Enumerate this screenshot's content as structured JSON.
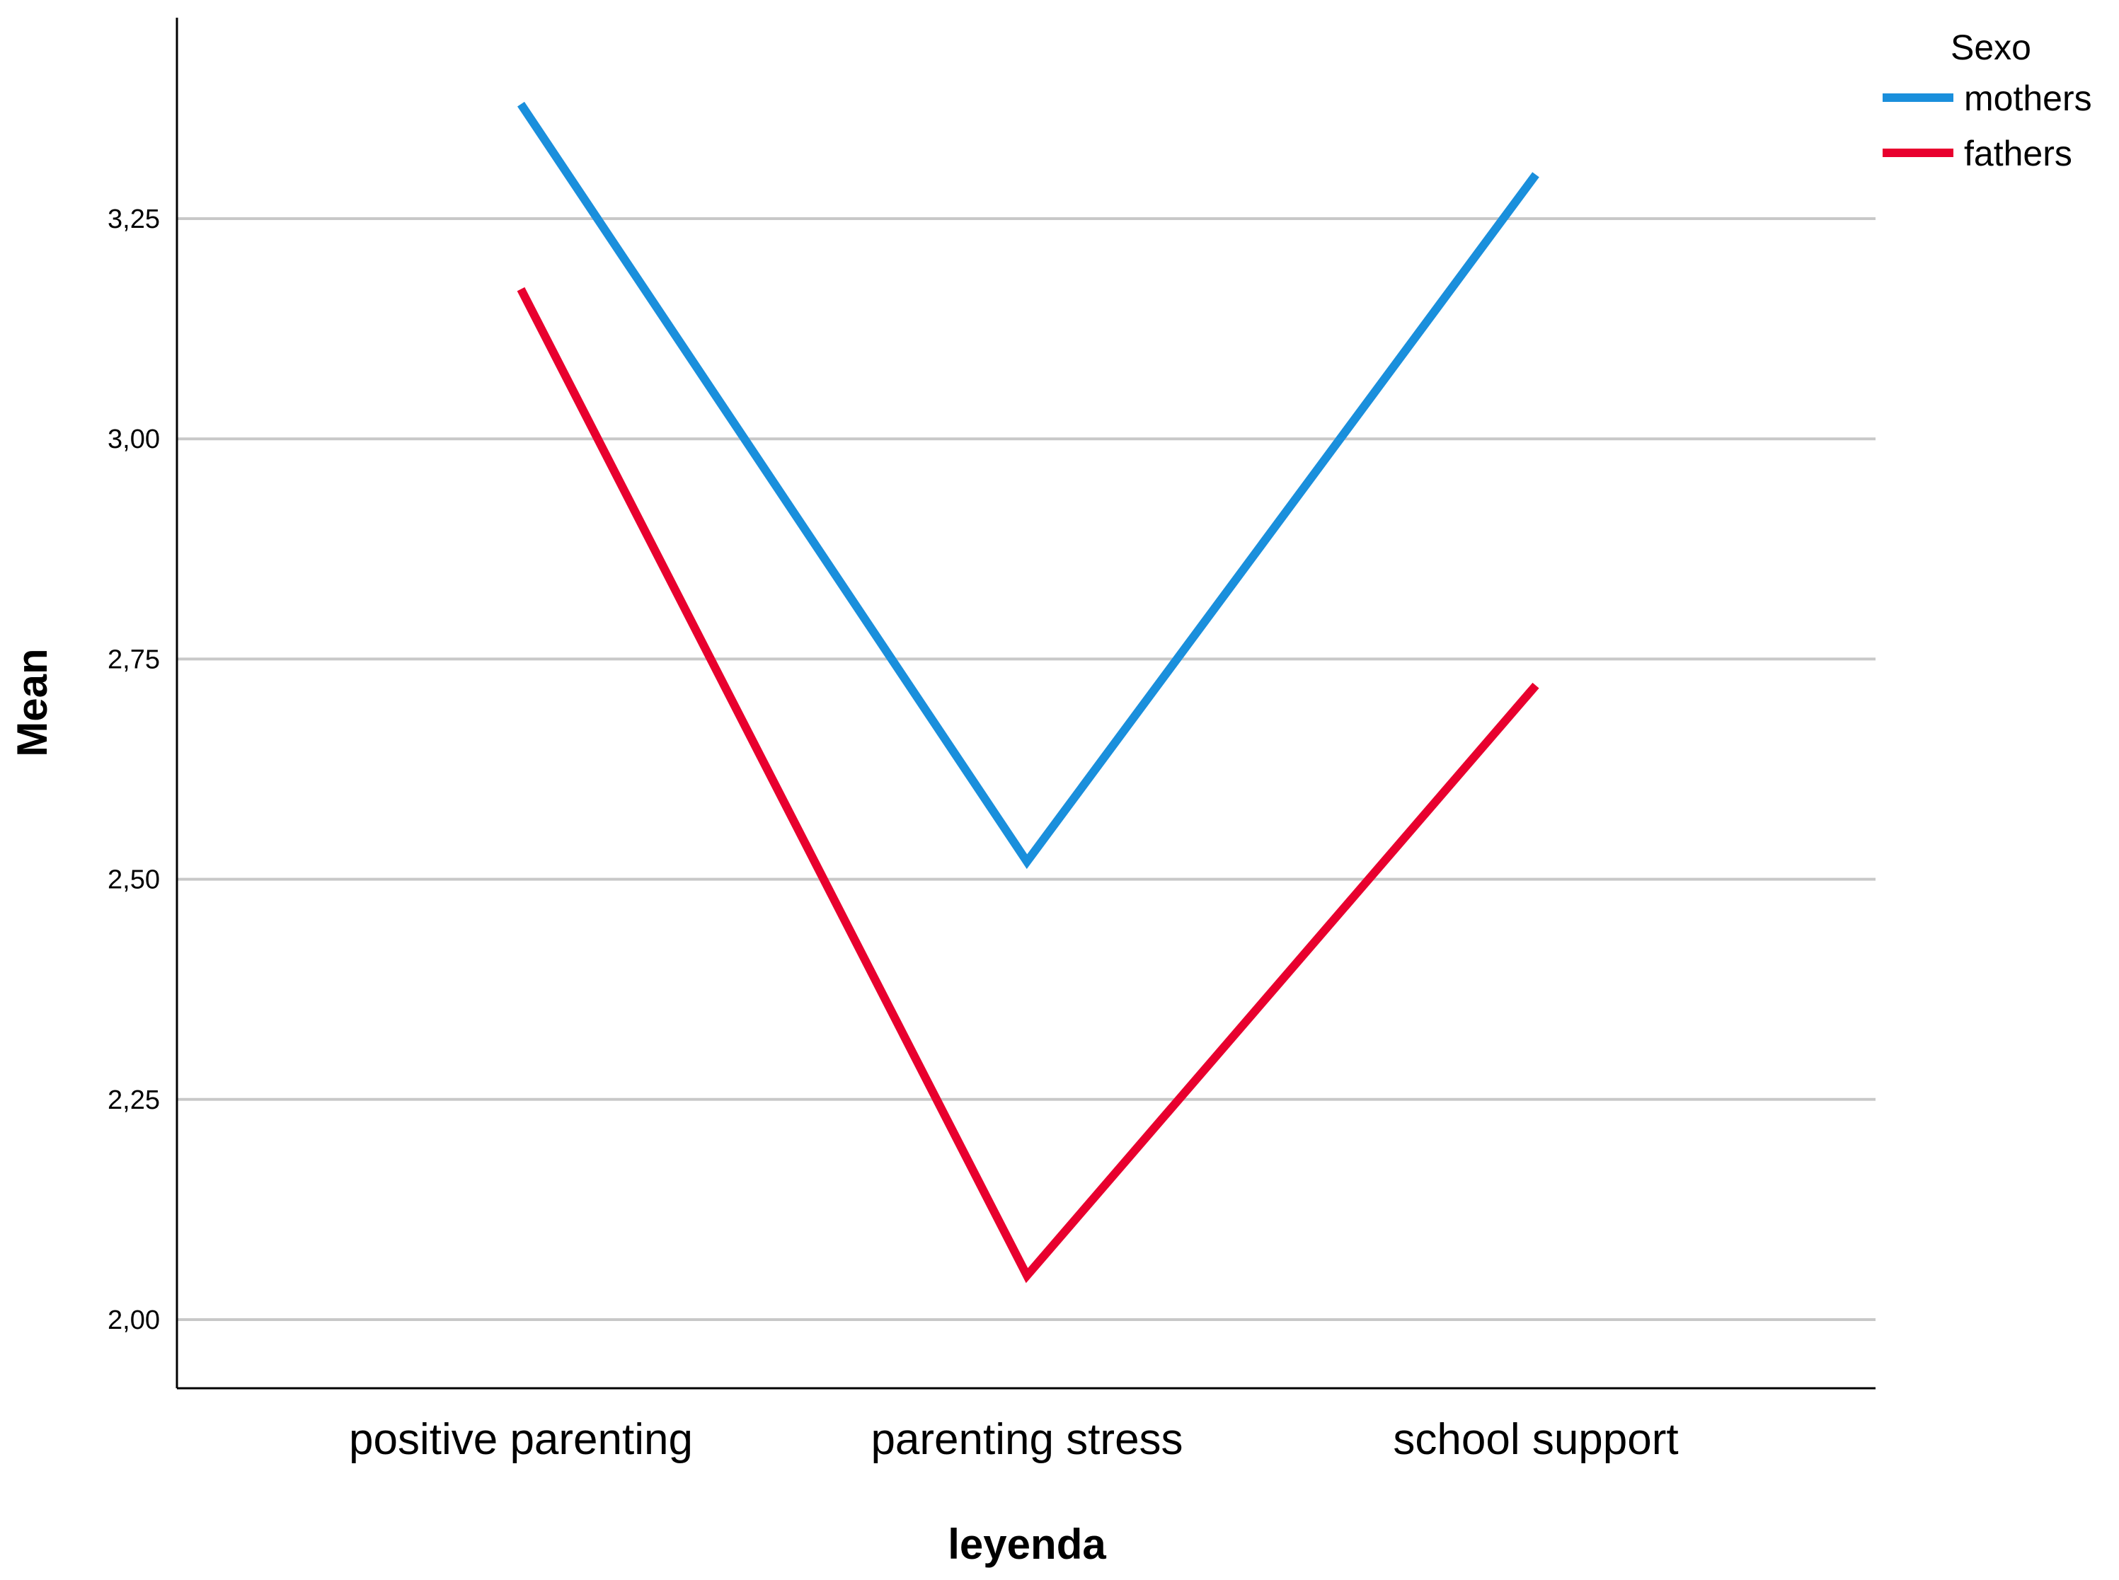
{
  "chart_data": {
    "type": "line",
    "xlabel": "leyenda",
    "ylabel": "Mean",
    "categories": [
      "positive parenting",
      "parenting stress",
      "school support"
    ],
    "ylim": [
      1.92,
      3.48
    ],
    "yticks": [
      2.0,
      2.25,
      2.5,
      2.75,
      3.0,
      3.25
    ],
    "ytick_labels": [
      "2,00",
      "2,25",
      "2,50",
      "2,75",
      "3,00",
      "3,25"
    ],
    "grid": true,
    "legend": {
      "title": "Sexo",
      "placement": "top-right"
    },
    "series": [
      {
        "name": "mothers",
        "color": "#1a8fdc",
        "values": [
          3.38,
          2.52,
          3.3
        ]
      },
      {
        "name": "fathers",
        "color": "#e8002e",
        "values": [
          3.17,
          2.05,
          2.72
        ]
      }
    ]
  }
}
